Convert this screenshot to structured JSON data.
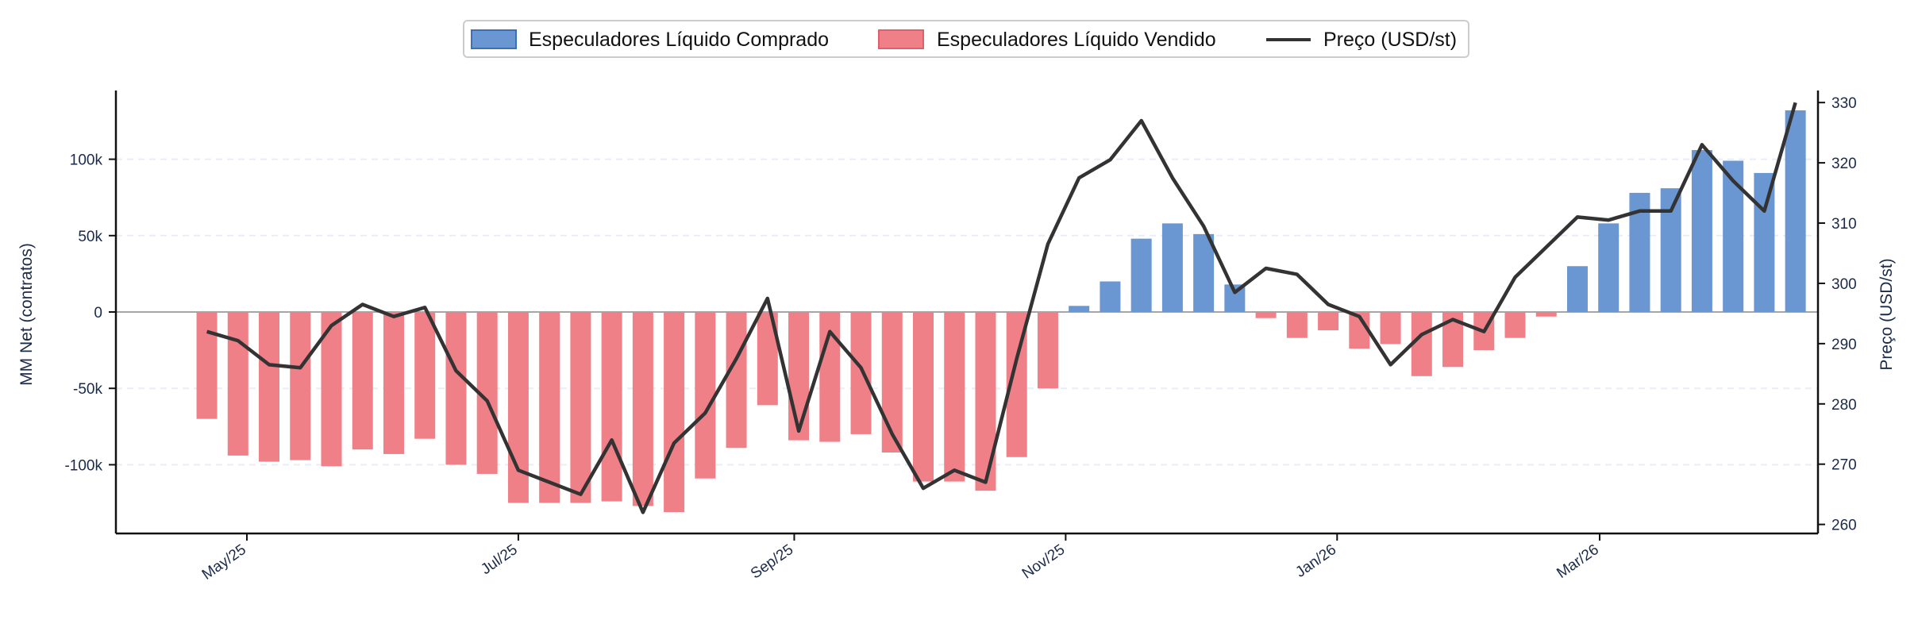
{
  "chart_data": {
    "type": "bar",
    "left_axis": {
      "label": "MM Net (contratos)",
      "lim": [
        -145000,
        145000
      ],
      "ticks": [
        -100000,
        -50000,
        0,
        50000,
        100000
      ],
      "tick_labels": [
        "-100k",
        "-50k",
        "0",
        "50k",
        "100k"
      ]
    },
    "right_axis": {
      "label": "Preço (USD/st)",
      "lim": [
        258.5,
        332
      ],
      "ticks": [
        260,
        270,
        280,
        290,
        300,
        310,
        320,
        330
      ],
      "tick_labels": [
        "260",
        "270",
        "280",
        "290",
        "300",
        "310",
        "320",
        "330"
      ]
    },
    "x_axis": {
      "start_date": "2025-04-01",
      "tick_dates": [
        "2025-05-01",
        "2025-07-01",
        "2025-09-01",
        "2025-11-01",
        "2026-01-01",
        "2026-03-01"
      ],
      "tick_labels": [
        "May/25",
        "Jul/25",
        "Sep/25",
        "Nov/25",
        "Jan/26",
        "Mar/26"
      ]
    },
    "legend": {
      "position": "top-center",
      "items": [
        {
          "key": "long",
          "label": "Especuladores Líquido Comprado"
        },
        {
          "key": "short",
          "label": "Especuladores Líquido Vendido"
        },
        {
          "key": "price",
          "label": "Preço (USD/st)"
        }
      ]
    },
    "colors": {
      "long": "#6a96d2",
      "long_edge": "#3d6fb8",
      "short": "#f08088",
      "short_edge": "#e05f68",
      "price": "#333333",
      "zero_line": "#888888",
      "grid": "#e8eef8"
    },
    "grid": true,
    "dates": [
      "2025-04-22",
      "2025-04-29",
      "2025-05-06",
      "2025-05-13",
      "2025-05-20",
      "2025-05-27",
      "2025-06-03",
      "2025-06-10",
      "2025-06-17",
      "2025-06-24",
      "2025-07-01",
      "2025-07-08",
      "2025-07-15",
      "2025-07-22",
      "2025-07-29",
      "2025-08-05",
      "2025-08-12",
      "2025-08-19",
      "2025-08-26",
      "2025-09-02",
      "2025-09-09",
      "2025-09-16",
      "2025-09-23",
      "2025-09-30",
      "2025-10-07",
      "2025-10-14",
      "2025-10-21",
      "2025-10-28",
      "2025-11-04",
      "2025-11-11",
      "2025-11-18",
      "2025-11-25",
      "2025-12-02",
      "2025-12-09",
      "2025-12-16",
      "2025-12-23",
      "2025-12-30",
      "2026-01-06",
      "2026-01-13",
      "2026-01-20",
      "2026-01-27",
      "2026-02-03",
      "2026-02-10",
      "2026-02-17",
      "2026-02-24",
      "2026-03-03",
      "2026-03-10",
      "2026-03-17",
      "2026-03-24",
      "2026-03-31",
      "2026-04-07",
      "2026-04-14"
    ],
    "mm_net": [
      -70000,
      -94000,
      -98000,
      -97000,
      -101000,
      -90000,
      -93000,
      -83000,
      -100000,
      -106000,
      -125000,
      -125000,
      -125000,
      -124000,
      -127000,
      -131000,
      -109000,
      -89000,
      -61000,
      -84000,
      -85000,
      -80000,
      -92000,
      -111000,
      -111000,
      -117000,
      -95000,
      -50000,
      4000,
      20000,
      48000,
      58000,
      51000,
      18000,
      -4000,
      -17000,
      -12000,
      -24000,
      -21000,
      -42000,
      -36000,
      -25000,
      -17000,
      -3000,
      30000,
      58000,
      78000,
      81000,
      106000,
      99000,
      91000,
      132000
    ],
    "price": [
      292,
      290.5,
      286.5,
      286,
      293,
      296.5,
      294.5,
      296,
      285.5,
      280.5,
      269,
      267,
      265,
      274,
      262,
      273.5,
      278.5,
      287.5,
      297.5,
      275.5,
      292,
      286,
      275,
      266,
      269,
      267,
      287.5,
      306.5,
      317.5,
      320.5,
      327,
      317.5,
      309.5,
      298.5,
      302.5,
      301.5,
      296.5,
      294.5,
      286.5,
      291.5,
      294,
      292,
      301,
      306,
      311,
      310.5,
      312,
      312,
      323,
      317,
      312,
      330
    ]
  }
}
